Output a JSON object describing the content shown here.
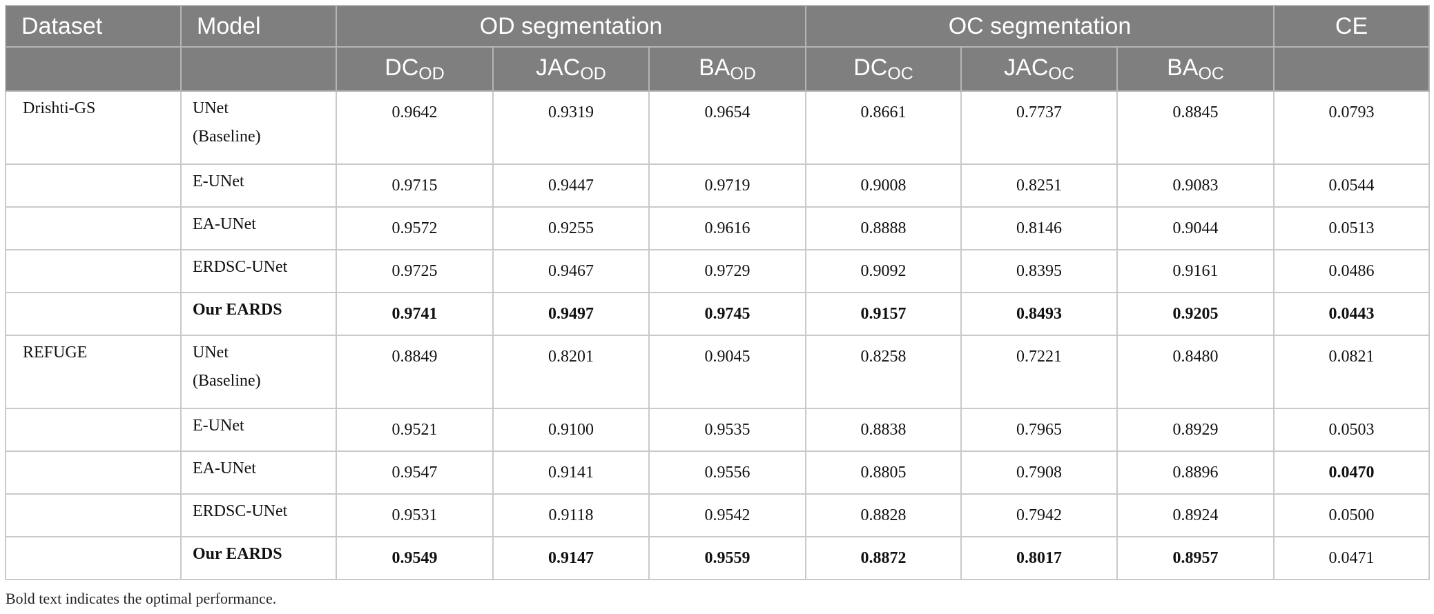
{
  "table": {
    "header1": [
      "Dataset",
      "Model",
      "OD segmentation",
      "OC segmentation",
      "CE"
    ],
    "header2": [
      {
        "main": "DC",
        "sub": "OD"
      },
      {
        "main": "JAC",
        "sub": "OD"
      },
      {
        "main": "BA",
        "sub": "OD"
      },
      {
        "main": "DC",
        "sub": "OC"
      },
      {
        "main": "JAC",
        "sub": "OC"
      },
      {
        "main": "BA",
        "sub": "OC"
      }
    ],
    "rows": [
      {
        "dataset": "Drishti-GS",
        "model": "UNet\n(Baseline)",
        "values": [
          "0.9642",
          "0.9319",
          "0.9654",
          "0.8661",
          "0.7737",
          "0.8845",
          "0.0793"
        ],
        "bold": []
      },
      {
        "dataset": null,
        "model": "E-UNet",
        "values": [
          "0.9715",
          "0.9447",
          "0.9719",
          "0.9008",
          "0.8251",
          "0.9083",
          "0.0544"
        ],
        "bold": []
      },
      {
        "dataset": null,
        "model": "EA-UNet",
        "values": [
          "0.9572",
          "0.9255",
          "0.9616",
          "0.8888",
          "0.8146",
          "0.9044",
          "0.0513"
        ],
        "bold": []
      },
      {
        "dataset": null,
        "model": "ERDSC-UNet",
        "values": [
          "0.9725",
          "0.9467",
          "0.9729",
          "0.9092",
          "0.8395",
          "0.9161",
          "0.0486"
        ],
        "bold": []
      },
      {
        "dataset": null,
        "model": "Our EARDS",
        "values": [
          "0.9741",
          "0.9497",
          "0.9745",
          "0.9157",
          "0.8493",
          "0.9205",
          "0.0443"
        ],
        "bold": [
          "model",
          0,
          1,
          2,
          3,
          4,
          5,
          6
        ]
      },
      {
        "dataset": "REFUGE",
        "model": "UNet\n(Baseline)",
        "values": [
          "0.8849",
          "0.8201",
          "0.9045",
          "0.8258",
          "0.7221",
          "0.8480",
          "0.0821"
        ],
        "bold": []
      },
      {
        "dataset": null,
        "model": "E-UNet",
        "values": [
          "0.9521",
          "0.9100",
          "0.9535",
          "0.8838",
          "0.7965",
          "0.8929",
          "0.0503"
        ],
        "bold": []
      },
      {
        "dataset": null,
        "model": "EA-UNet",
        "values": [
          "0.9547",
          "0.9141",
          "0.9556",
          "0.8805",
          "0.7908",
          "0.8896",
          "0.0470"
        ],
        "bold": [
          6
        ]
      },
      {
        "dataset": null,
        "model": "ERDSC-UNet",
        "values": [
          "0.9531",
          "0.9118",
          "0.9542",
          "0.8828",
          "0.7942",
          "0.8924",
          "0.0500"
        ],
        "bold": []
      },
      {
        "dataset": null,
        "model": "Our EARDS",
        "values": [
          "0.9549",
          "0.9147",
          "0.9559",
          "0.8872",
          "0.8017",
          "0.8957",
          "0.0471"
        ],
        "bold": [
          "model",
          0,
          1,
          2,
          3,
          4,
          5
        ]
      }
    ]
  },
  "footnote": "Bold text indicates the optimal performance."
}
